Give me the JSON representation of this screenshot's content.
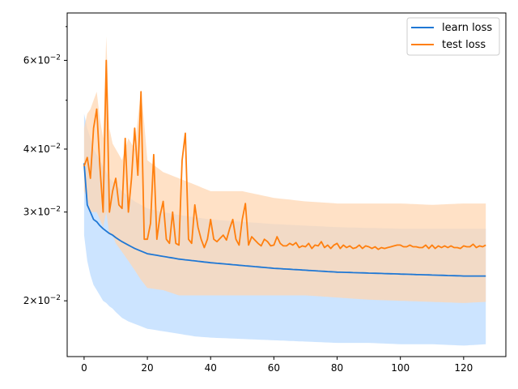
{
  "chart_data": {
    "type": "line",
    "title": "",
    "xlabel": "",
    "ylabel": "",
    "xlim": [
      -5.35,
      133.35
    ],
    "ylim": [
      0.0155,
      0.0745
    ],
    "yscale": "log",
    "grid": false,
    "legend_position": "top-right",
    "x_ticks": [
      {
        "value": 0,
        "label": "0"
      },
      {
        "value": 20,
        "label": "20"
      },
      {
        "value": 40,
        "label": "40"
      },
      {
        "value": 60,
        "label": "60"
      },
      {
        "value": 80,
        "label": "80"
      },
      {
        "value": 100,
        "label": "100"
      },
      {
        "value": 120,
        "label": "120"
      }
    ],
    "y_major_ticks": [
      {
        "value": 0.02,
        "label_mant": "2",
        "label_exp": "−2"
      },
      {
        "value": 0.03,
        "label_mant": "3",
        "label_exp": "−2"
      },
      {
        "value": 0.04,
        "label_mant": "4",
        "label_exp": "−2"
      },
      {
        "value": 0.06,
        "label_mant": "6",
        "label_exp": "−2"
      }
    ],
    "y_minor_ticks": [
      0.05,
      0.07
    ],
    "x_knots": [
      0,
      1,
      2,
      3,
      4,
      5,
      6,
      7,
      8,
      9,
      10,
      12,
      14,
      16,
      18,
      20,
      25,
      30,
      35,
      40,
      50,
      60,
      70,
      80,
      90,
      100,
      110,
      120,
      127
    ],
    "series": [
      {
        "name": "learn loss",
        "color": "#1f77d4",
        "band_color": "#cce4ff",
        "knots": [
          0.0375,
          0.031,
          0.03,
          0.029,
          0.0287,
          0.0282,
          0.0278,
          0.0275,
          0.0272,
          0.027,
          0.0267,
          0.0262,
          0.0258,
          0.0254,
          0.0251,
          0.0248,
          0.0245,
          0.0242,
          0.024,
          0.0238,
          0.0235,
          0.0232,
          0.023,
          0.0228,
          0.0227,
          0.0226,
          0.0225,
          0.0224,
          0.0224
        ],
        "upper_knots": [
          0.047,
          0.044,
          0.042,
          0.04,
          0.039,
          0.038,
          0.037,
          0.036,
          0.035,
          0.0345,
          0.034,
          0.033,
          0.0322,
          0.0315,
          0.031,
          0.0305,
          0.03,
          0.0296,
          0.0293,
          0.029,
          0.0287,
          0.0284,
          0.0282,
          0.028,
          0.0279,
          0.0278,
          0.0278,
          0.0278,
          0.0278
        ],
        "lower_knots": [
          0.027,
          0.024,
          0.0225,
          0.0215,
          0.021,
          0.0205,
          0.02,
          0.0198,
          0.0195,
          0.0193,
          0.019,
          0.0185,
          0.0182,
          0.018,
          0.0178,
          0.0176,
          0.0174,
          0.0172,
          0.017,
          0.0169,
          0.0168,
          0.0167,
          0.0166,
          0.0165,
          0.0165,
          0.0164,
          0.0164,
          0.0163,
          0.0164
        ]
      },
      {
        "name": "test loss",
        "color": "#ff7f0e",
        "band_color": "#ffd7b3",
        "points": [
          [
            0,
            0.037
          ],
          [
            1,
            0.0385
          ],
          [
            2,
            0.035
          ],
          [
            3,
            0.044
          ],
          [
            4,
            0.048
          ],
          [
            5,
            0.037
          ],
          [
            6,
            0.03
          ],
          [
            7,
            0.06
          ],
          [
            8,
            0.03
          ],
          [
            9,
            0.033
          ],
          [
            10,
            0.035
          ],
          [
            11,
            0.031
          ],
          [
            12,
            0.0305
          ],
          [
            13,
            0.042
          ],
          [
            14,
            0.03
          ],
          [
            15,
            0.035
          ],
          [
            16,
            0.044
          ],
          [
            17,
            0.0355
          ],
          [
            18,
            0.052
          ],
          [
            19,
            0.0265
          ],
          [
            20,
            0.0265
          ],
          [
            21,
            0.0285
          ],
          [
            22,
            0.039
          ],
          [
            23,
            0.0265
          ],
          [
            24,
            0.0295
          ],
          [
            25,
            0.0315
          ],
          [
            26,
            0.0265
          ],
          [
            27,
            0.026
          ],
          [
            28,
            0.03
          ],
          [
            29,
            0.026
          ],
          [
            30,
            0.0258
          ],
          [
            31,
            0.038
          ],
          [
            32,
            0.043
          ],
          [
            33,
            0.0265
          ],
          [
            34,
            0.026
          ],
          [
            35,
            0.031
          ],
          [
            36,
            0.028
          ],
          [
            37,
            0.0265
          ],
          [
            38,
            0.0255
          ],
          [
            39,
            0.0265
          ],
          [
            40,
            0.029
          ],
          [
            41,
            0.0265
          ],
          [
            42,
            0.0262
          ],
          [
            43,
            0.0266
          ],
          [
            44,
            0.027
          ],
          [
            45,
            0.0264
          ],
          [
            46,
            0.0278
          ],
          [
            47,
            0.029
          ],
          [
            48,
            0.0265
          ],
          [
            49,
            0.0258
          ],
          [
            50,
            0.029
          ],
          [
            51,
            0.0312
          ],
          [
            52,
            0.0258
          ],
          [
            53,
            0.0268
          ],
          [
            54,
            0.0264
          ],
          [
            55,
            0.026
          ],
          [
            56,
            0.0257
          ],
          [
            57,
            0.0265
          ],
          [
            58,
            0.0262
          ],
          [
            59,
            0.0257
          ],
          [
            60,
            0.0258
          ],
          [
            61,
            0.0268
          ],
          [
            62,
            0.026
          ],
          [
            63,
            0.0257
          ],
          [
            64,
            0.0257
          ],
          [
            65,
            0.026
          ],
          [
            66,
            0.0258
          ],
          [
            67,
            0.0261
          ],
          [
            68,
            0.0255
          ],
          [
            69,
            0.0257
          ],
          [
            70,
            0.0256
          ],
          [
            71,
            0.026
          ],
          [
            72,
            0.0254
          ],
          [
            73,
            0.0258
          ],
          [
            74,
            0.0257
          ],
          [
            75,
            0.0262
          ],
          [
            76,
            0.0255
          ],
          [
            77,
            0.0258
          ],
          [
            78,
            0.0254
          ],
          [
            79,
            0.0258
          ],
          [
            80,
            0.026
          ],
          [
            81,
            0.0254
          ],
          [
            82,
            0.0258
          ],
          [
            83,
            0.0255
          ],
          [
            84,
            0.0257
          ],
          [
            85,
            0.0254
          ],
          [
            86,
            0.0255
          ],
          [
            87,
            0.0258
          ],
          [
            88,
            0.0254
          ],
          [
            89,
            0.0257
          ],
          [
            90,
            0.0256
          ],
          [
            91,
            0.0254
          ],
          [
            92,
            0.0256
          ],
          [
            93,
            0.0253
          ],
          [
            94,
            0.0255
          ],
          [
            95,
            0.0254
          ],
          [
            96,
            0.0255
          ],
          [
            97,
            0.0256
          ],
          [
            98,
            0.0257
          ],
          [
            99,
            0.0258
          ],
          [
            100,
            0.0258
          ],
          [
            101,
            0.0256
          ],
          [
            102,
            0.0256
          ],
          [
            103,
            0.0258
          ],
          [
            104,
            0.0256
          ],
          [
            105,
            0.0256
          ],
          [
            106,
            0.0255
          ],
          [
            107,
            0.0255
          ],
          [
            108,
            0.0258
          ],
          [
            109,
            0.0254
          ],
          [
            110,
            0.0258
          ],
          [
            111,
            0.0254
          ],
          [
            112,
            0.0257
          ],
          [
            113,
            0.0255
          ],
          [
            114,
            0.0257
          ],
          [
            115,
            0.0255
          ],
          [
            116,
            0.0257
          ],
          [
            117,
            0.0255
          ],
          [
            118,
            0.0255
          ],
          [
            119,
            0.0254
          ],
          [
            120,
            0.0257
          ],
          [
            121,
            0.0256
          ],
          [
            122,
            0.0256
          ],
          [
            123,
            0.0259
          ],
          [
            124,
            0.0255
          ],
          [
            125,
            0.0257
          ],
          [
            126,
            0.0256
          ],
          [
            127,
            0.0258
          ]
        ],
        "upper_knots": [
          0.044,
          0.047,
          0.048,
          0.05,
          0.052,
          0.046,
          0.042,
          0.067,
          0.044,
          0.041,
          0.04,
          0.038,
          0.042,
          0.04,
          0.052,
          0.038,
          0.036,
          0.035,
          0.034,
          0.033,
          0.033,
          0.032,
          0.0315,
          0.0312,
          0.0312,
          0.0312,
          0.031,
          0.0312,
          0.0312
        ],
        "lower_knots": [
          0.033,
          0.032,
          0.03,
          0.03,
          0.03,
          0.029,
          0.028,
          0.03,
          0.027,
          0.027,
          0.026,
          0.025,
          0.024,
          0.023,
          0.022,
          0.0212,
          0.021,
          0.0205,
          0.0205,
          0.0205,
          0.0205,
          0.0205,
          0.0205,
          0.0203,
          0.0201,
          0.02,
          0.0199,
          0.0198,
          0.0199
        ]
      }
    ]
  }
}
